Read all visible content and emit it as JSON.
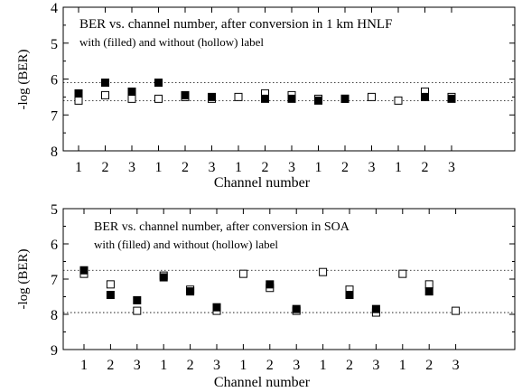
{
  "chart_data": [
    {
      "type": "scatter",
      "title": "BER vs. channel number, after conversion in 1 km HNLF",
      "subtitle": "with (filled) and without (hollow) label",
      "xlabel": "Channel number",
      "ylabel": "-log (BER)",
      "ylim": [
        8,
        4
      ],
      "y_reversed": true,
      "yticks": [
        "4",
        "5",
        "6",
        "7",
        "8"
      ],
      "x_tick_labels": [
        "1",
        "2",
        "3",
        "1",
        "2",
        "3",
        "1",
        "2",
        "3",
        "1",
        "2",
        "3",
        "1",
        "2",
        "3"
      ],
      "reference_lines": [
        6.1,
        6.6
      ],
      "series": [
        {
          "name": "with label (filled)",
          "marker": "filled-square",
          "values": [
            6.4,
            6.1,
            6.35,
            6.1,
            6.45,
            6.5,
            null,
            6.55,
            6.55,
            6.6,
            6.55,
            null,
            null,
            6.5,
            6.55
          ]
        },
        {
          "name": "without label (hollow)",
          "marker": "hollow-square",
          "values": [
            6.6,
            6.45,
            6.55,
            6.55,
            6.5,
            6.55,
            6.5,
            6.4,
            6.45,
            6.55,
            6.55,
            6.5,
            6.6,
            6.35,
            6.5
          ]
        }
      ]
    },
    {
      "type": "scatter",
      "title": "BER vs. channel number, after conversion in SOA",
      "subtitle": "with (filled) and without (hollow) label",
      "xlabel": "Channel number",
      "ylabel": "-log (BER)",
      "ylim": [
        9,
        5
      ],
      "y_reversed": true,
      "yticks": [
        "5",
        "6",
        "7",
        "8",
        "9"
      ],
      "x_tick_labels": [
        "1",
        "2",
        "3",
        "1",
        "2",
        "3",
        "1",
        "2",
        "3",
        "1",
        "2",
        "3",
        "1",
        "2",
        "3"
      ],
      "reference_lines": [
        6.75,
        7.95
      ],
      "series": [
        {
          "name": "with label (filled)",
          "marker": "filled-square",
          "values": [
            6.75,
            7.45,
            7.6,
            6.95,
            7.35,
            7.8,
            null,
            7.15,
            7.85,
            null,
            7.45,
            7.85,
            null,
            7.35,
            null
          ]
        },
        {
          "name": "without label (hollow)",
          "marker": "hollow-square",
          "values": [
            6.85,
            7.15,
            7.9,
            6.9,
            7.3,
            7.9,
            6.85,
            7.25,
            7.9,
            6.8,
            7.3,
            7.95,
            6.85,
            7.15,
            7.9
          ]
        }
      ]
    }
  ]
}
